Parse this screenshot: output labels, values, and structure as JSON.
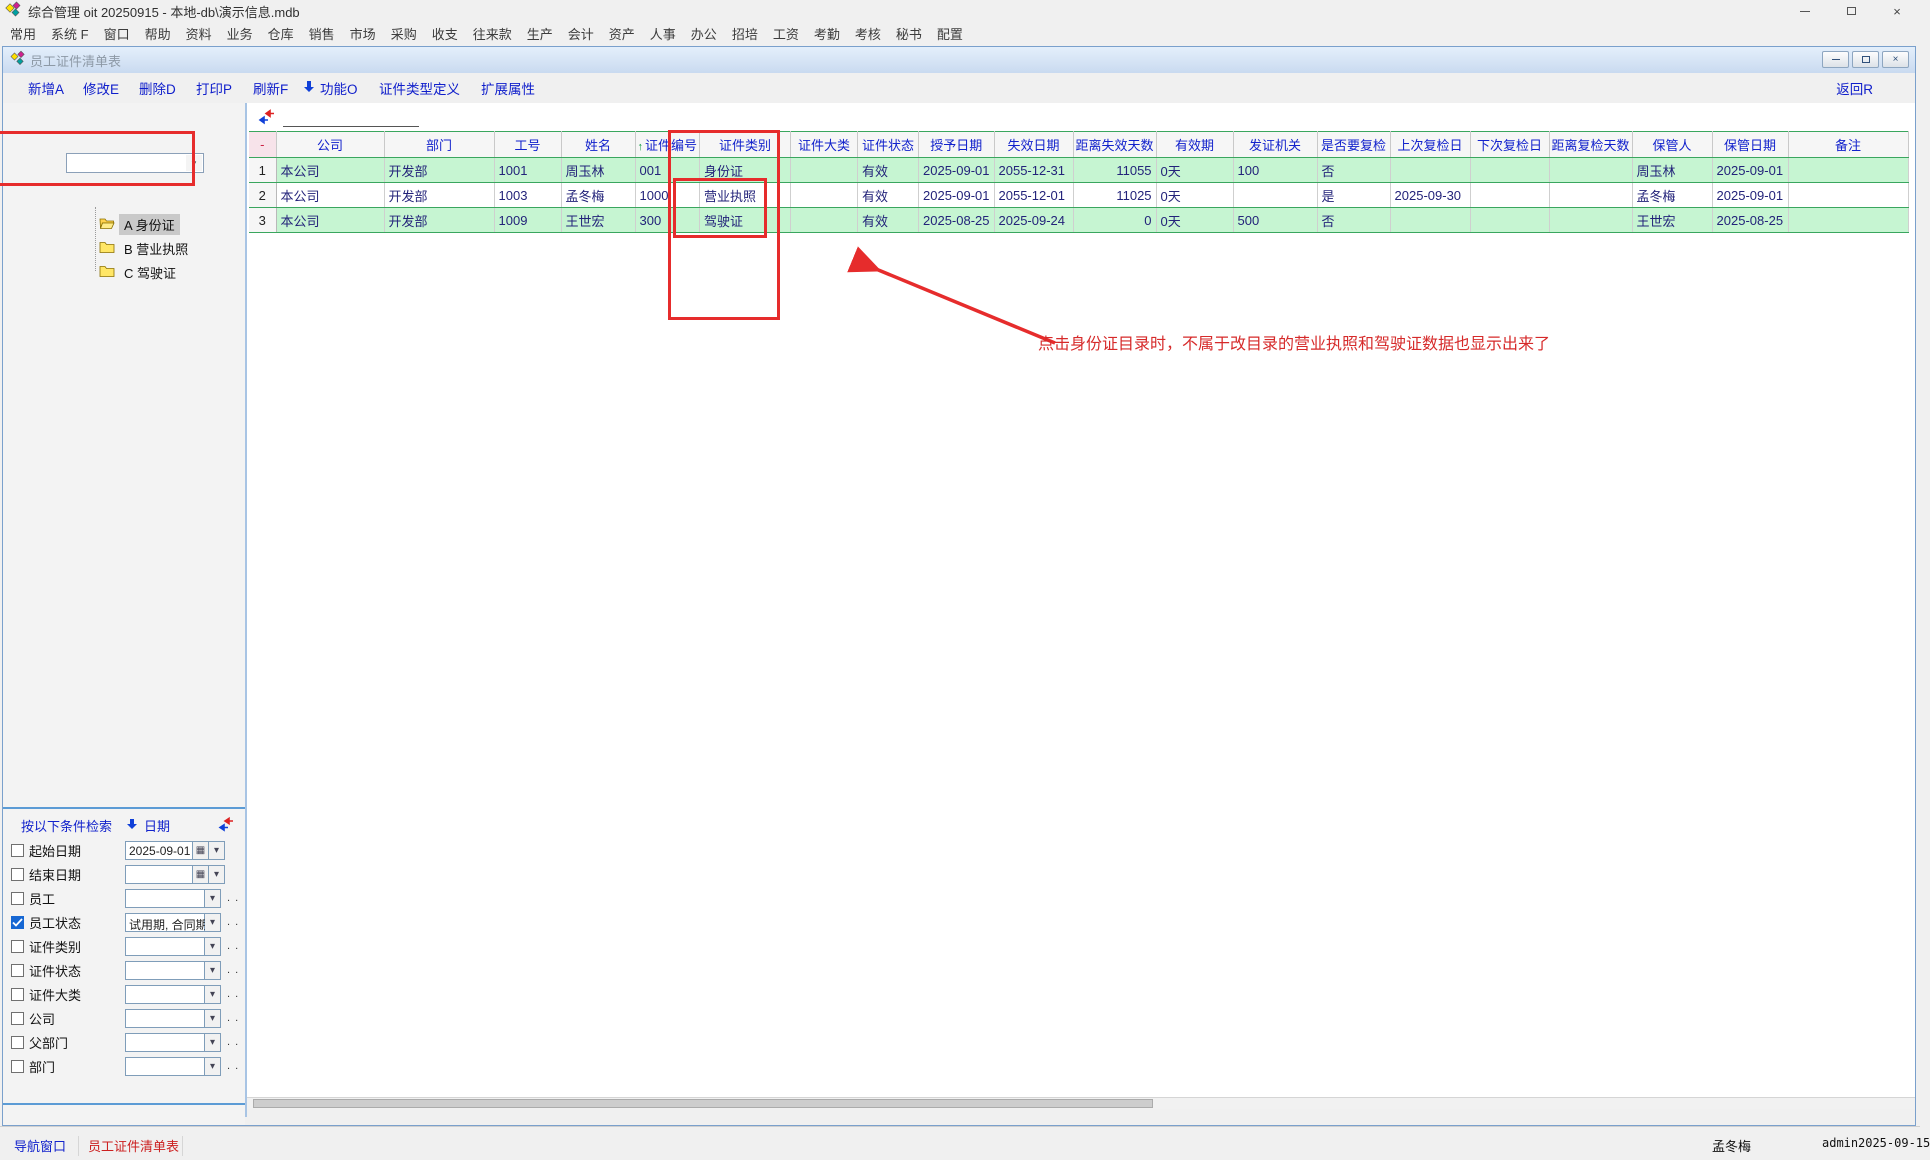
{
  "window": {
    "title": "综合管理 oit 20250915 - 本地-db\\演示信息.mdb"
  },
  "menu": {
    "items": [
      "常用",
      "系统 F",
      "窗口",
      "帮助",
      "资料",
      "业务",
      "仓库",
      "销售",
      "市场",
      "采购",
      "收支",
      "往来款",
      "生产",
      "会计",
      "资产",
      "人事",
      "办公",
      "招培",
      "工资",
      "考勤",
      "考核",
      "秘书",
      "配置"
    ]
  },
  "child": {
    "title": "员工证件清单表"
  },
  "toolbar": {
    "buttons": [
      {
        "label": "新增A"
      },
      {
        "label": "修改E"
      },
      {
        "label": "删除D"
      },
      {
        "label": "打印P"
      },
      {
        "label": "刷新F"
      },
      {
        "label": "功能O",
        "icon": "down-arrow"
      },
      {
        "label": "证件类型定义"
      },
      {
        "label": "扩展属性"
      }
    ],
    "back_label": "返回R"
  },
  "tree": {
    "combo_value": "",
    "items": [
      {
        "label": "A 身份证",
        "selected": true,
        "open": true
      },
      {
        "label": "B 营业执照",
        "selected": false,
        "open": false
      },
      {
        "label": "C 驾驶证",
        "selected": false,
        "open": false
      }
    ]
  },
  "filter": {
    "header": "按以下条件检索",
    "header2": "日期",
    "rows": [
      {
        "label": "起始日期",
        "checked": false,
        "type": "date",
        "value": "2025-09-01",
        "dots": false
      },
      {
        "label": "结束日期",
        "checked": false,
        "type": "date",
        "value": "",
        "dots": false
      },
      {
        "label": "员工",
        "checked": false,
        "type": "combo",
        "value": "",
        "dots": true
      },
      {
        "label": "员工状态",
        "checked": true,
        "type": "combo",
        "value": "试用期, 合同期",
        "dots": true
      },
      {
        "label": "证件类别",
        "checked": false,
        "type": "combo",
        "value": "",
        "dots": true
      },
      {
        "label": "证件状态",
        "checked": false,
        "type": "combo",
        "value": "",
        "dots": true
      },
      {
        "label": "证件大类",
        "checked": false,
        "type": "combo",
        "value": "",
        "dots": true
      },
      {
        "label": "公司",
        "checked": false,
        "type": "combo",
        "value": "",
        "dots": true
      },
      {
        "label": "父部门",
        "checked": false,
        "type": "combo",
        "value": "",
        "dots": true
      },
      {
        "label": "部门",
        "checked": false,
        "type": "combo",
        "value": "",
        "dots": true
      }
    ]
  },
  "table": {
    "columns": [
      "-",
      "公司",
      "部门",
      "工号",
      "姓名",
      "证件编号",
      "证件类别",
      "证件大类",
      "证件状态",
      "授予日期",
      "失效日期",
      "距离失效天数",
      "有效期",
      "发证机关",
      "是否要复检",
      "上次复检日",
      "下次复检日",
      "距离复检天数",
      "保管人",
      "保管日期",
      "备注"
    ],
    "sorted_by": "证件编号",
    "rows": [
      [
        "1",
        "本公司",
        "开发部",
        "1001",
        "周玉林",
        "001",
        "身份证",
        "",
        "有效",
        "2025-09-01",
        "2055-12-31",
        "11055",
        "0天",
        "100",
        "否",
        "",
        "",
        "",
        "周玉林",
        "2025-09-01",
        ""
      ],
      [
        "2",
        "本公司",
        "开发部",
        "1003",
        "孟冬梅",
        "1000",
        "营业执照",
        "",
        "有效",
        "2025-09-01",
        "2055-12-01",
        "11025",
        "0天",
        "",
        "是",
        "2025-09-30",
        "",
        "",
        "孟冬梅",
        "2025-09-01",
        ""
      ],
      [
        "3",
        "本公司",
        "开发部",
        "1009",
        "王世宏",
        "300",
        "驾驶证",
        "",
        "有效",
        "2025-08-25",
        "2025-09-24",
        "0",
        "0天",
        "500",
        "否",
        "",
        "",
        "",
        "王世宏",
        "2025-08-25",
        ""
      ]
    ]
  },
  "annotation": {
    "text": "点击身份证目录时，不属于改目录的营业执照和驾驶证数据也显示出来了",
    "color": "#d62a2a"
  },
  "statusbar": {
    "nav": "导航窗口",
    "current": "员工证件清单表",
    "user": "孟冬梅",
    "login": "admin",
    "date": "2025-09-15"
  }
}
